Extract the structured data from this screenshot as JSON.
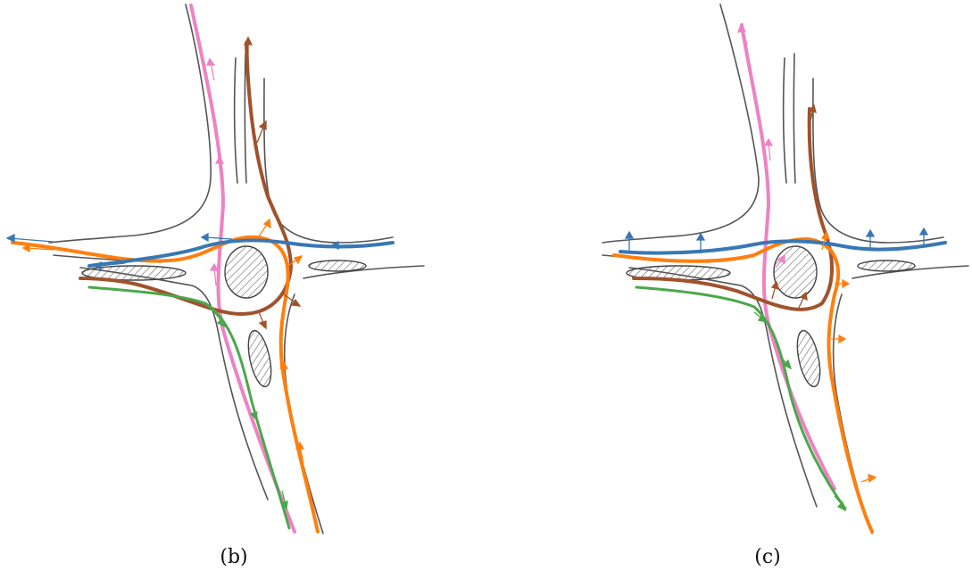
{
  "captions": {
    "b": "(b)",
    "c": "(c)"
  },
  "trajectory_colors": {
    "blue": "#3778b5",
    "orange": "#ff7f0e",
    "brown": "#a0522d",
    "green": "#4aa84a",
    "pink": "#ee82c4"
  },
  "road_colors": {
    "edge": "#555555",
    "hatch": "#666666"
  },
  "icons": {
    "arrowhead": "triangle-arrow",
    "island": "hatched-ellipse"
  }
}
